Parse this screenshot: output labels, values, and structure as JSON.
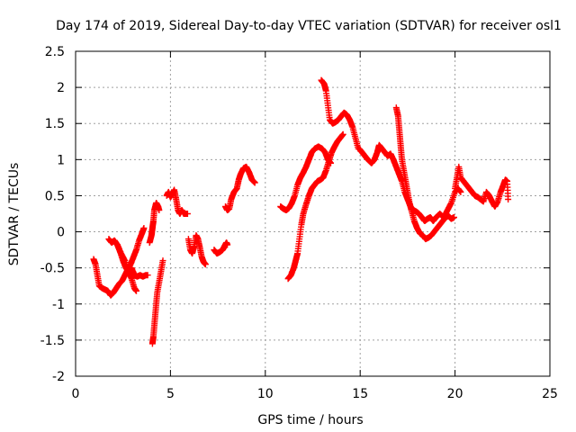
{
  "chart_data": {
    "type": "scatter",
    "title": "Day 174 of 2019, Sidereal Day-to-day VTEC variation (SDTVAR) for receiver osl1",
    "xlabel": "GPS time / hours",
    "ylabel": "SDTVAR / TECUs",
    "xlim": [
      0,
      25
    ],
    "ylim": [
      -2,
      2.5
    ],
    "xticks": [
      0,
      5,
      10,
      15,
      20,
      25
    ],
    "xtick_labels": [
      "0",
      "5",
      "10",
      "15",
      "20",
      "25"
    ],
    "yticks": [
      -2,
      -1.5,
      -1,
      -0.5,
      0,
      0.5,
      1,
      1.5,
      2,
      2.5
    ],
    "ytick_labels": [
      "-2",
      "-1.5",
      "-1",
      "-0.5",
      "0",
      "0.5",
      "1",
      "1.5",
      "2",
      "2.5"
    ],
    "grid": true,
    "marker": "+",
    "marker_color": "#ff0000",
    "tracks": [
      {
        "name": "track-1",
        "points": [
          [
            0.95,
            -0.38
          ],
          [
            1.05,
            -0.45
          ],
          [
            1.15,
            -0.6
          ],
          [
            1.25,
            -0.75
          ],
          [
            1.4,
            -0.78
          ],
          [
            1.55,
            -0.8
          ],
          [
            1.7,
            -0.82
          ],
          [
            1.85,
            -0.88
          ],
          [
            2.0,
            -0.84
          ],
          [
            2.15,
            -0.78
          ],
          [
            2.3,
            -0.72
          ],
          [
            2.45,
            -0.68
          ],
          [
            2.6,
            -0.6
          ],
          [
            2.75,
            -0.52
          ],
          [
            2.9,
            -0.45
          ],
          [
            3.05,
            -0.35
          ],
          [
            3.2,
            -0.25
          ],
          [
            3.35,
            -0.12
          ],
          [
            3.5,
            -0.02
          ],
          [
            3.6,
            0.05
          ]
        ]
      },
      {
        "name": "track-2",
        "points": [
          [
            1.75,
            -0.1
          ],
          [
            1.9,
            -0.15
          ],
          [
            2.05,
            -0.12
          ],
          [
            2.2,
            -0.18
          ],
          [
            2.35,
            -0.28
          ],
          [
            2.5,
            -0.4
          ],
          [
            2.65,
            -0.5
          ],
          [
            2.8,
            -0.55
          ],
          [
            2.95,
            -0.5
          ],
          [
            3.1,
            -0.6
          ],
          [
            3.25,
            -0.62
          ],
          [
            3.4,
            -0.6
          ],
          [
            3.55,
            -0.62
          ],
          [
            3.7,
            -0.6
          ],
          [
            3.8,
            -0.6
          ]
        ]
      },
      {
        "name": "track-3",
        "points": [
          [
            2.2,
            -0.18
          ],
          [
            2.4,
            -0.3
          ],
          [
            2.6,
            -0.4
          ],
          [
            2.8,
            -0.55
          ],
          [
            2.95,
            -0.65
          ],
          [
            3.1,
            -0.78
          ],
          [
            3.2,
            -0.82
          ]
        ]
      },
      {
        "name": "track-4",
        "points": [
          [
            3.9,
            -0.15
          ],
          [
            4.0,
            -0.05
          ],
          [
            4.05,
            0.05
          ],
          [
            4.1,
            0.15
          ],
          [
            4.15,
            0.3
          ],
          [
            4.25,
            0.4
          ],
          [
            4.35,
            0.35
          ],
          [
            4.4,
            0.3
          ]
        ]
      },
      {
        "name": "track-5",
        "points": [
          [
            4.05,
            -1.55
          ],
          [
            4.1,
            -1.45
          ],
          [
            4.15,
            -1.3
          ],
          [
            4.2,
            -1.15
          ],
          [
            4.25,
            -1.0
          ],
          [
            4.3,
            -0.85
          ],
          [
            4.4,
            -0.7
          ],
          [
            4.5,
            -0.55
          ],
          [
            4.6,
            -0.4
          ]
        ]
      },
      {
        "name": "track-6",
        "points": [
          [
            4.8,
            0.5
          ],
          [
            4.9,
            0.55
          ],
          [
            5.0,
            0.48
          ],
          [
            5.1,
            0.52
          ],
          [
            5.2,
            0.58
          ],
          [
            5.3,
            0.45
          ],
          [
            5.4,
            0.3
          ],
          [
            5.5,
            0.25
          ],
          [
            5.6,
            0.3
          ],
          [
            5.7,
            0.25
          ],
          [
            5.8,
            0.25
          ],
          [
            5.9,
            0.25
          ]
        ]
      },
      {
        "name": "track-7",
        "points": [
          [
            5.95,
            -0.1
          ],
          [
            6.05,
            -0.25
          ],
          [
            6.15,
            -0.3
          ],
          [
            6.25,
            -0.2
          ],
          [
            6.35,
            -0.05
          ],
          [
            6.45,
            -0.1
          ],
          [
            6.55,
            -0.22
          ],
          [
            6.65,
            -0.35
          ],
          [
            6.75,
            -0.42
          ],
          [
            6.85,
            -0.45
          ]
        ]
      },
      {
        "name": "track-8",
        "points": [
          [
            7.3,
            -0.25
          ],
          [
            7.45,
            -0.3
          ],
          [
            7.6,
            -0.28
          ],
          [
            7.75,
            -0.25
          ],
          [
            7.85,
            -0.2
          ],
          [
            7.95,
            -0.15
          ],
          [
            8.0,
            -0.18
          ]
        ]
      },
      {
        "name": "track-9",
        "points": [
          [
            7.9,
            0.35
          ],
          [
            8.0,
            0.3
          ],
          [
            8.1,
            0.32
          ],
          [
            8.2,
            0.45
          ],
          [
            8.35,
            0.55
          ],
          [
            8.5,
            0.6
          ],
          [
            8.6,
            0.72
          ],
          [
            8.7,
            0.8
          ],
          [
            8.85,
            0.88
          ],
          [
            9.0,
            0.9
          ],
          [
            9.15,
            0.82
          ],
          [
            9.3,
            0.72
          ],
          [
            9.45,
            0.68
          ]
        ]
      },
      {
        "name": "track-10",
        "points": [
          [
            10.8,
            0.35
          ],
          [
            10.95,
            0.32
          ],
          [
            11.1,
            0.3
          ],
          [
            11.25,
            0.33
          ],
          [
            11.4,
            0.4
          ],
          [
            11.55,
            0.5
          ],
          [
            11.7,
            0.65
          ],
          [
            11.85,
            0.75
          ],
          [
            12.0,
            0.82
          ],
          [
            12.15,
            0.9
          ],
          [
            12.3,
            1.0
          ],
          [
            12.45,
            1.1
          ],
          [
            12.6,
            1.15
          ],
          [
            12.8,
            1.18
          ],
          [
            13.0,
            1.15
          ],
          [
            13.15,
            1.1
          ],
          [
            13.3,
            1.0
          ],
          [
            13.45,
            0.95
          ]
        ]
      },
      {
        "name": "track-11",
        "points": [
          [
            11.2,
            -0.65
          ],
          [
            11.35,
            -0.6
          ],
          [
            11.5,
            -0.5
          ],
          [
            11.6,
            -0.4
          ],
          [
            11.7,
            -0.3
          ],
          [
            11.8,
            -0.1
          ],
          [
            11.9,
            0.1
          ],
          [
            12.0,
            0.25
          ],
          [
            12.15,
            0.38
          ],
          [
            12.3,
            0.5
          ],
          [
            12.45,
            0.6
          ],
          [
            12.6,
            0.65
          ],
          [
            12.75,
            0.7
          ],
          [
            12.9,
            0.72
          ],
          [
            13.05,
            0.75
          ],
          [
            13.2,
            0.85
          ],
          [
            13.35,
            0.98
          ],
          [
            13.5,
            1.1
          ],
          [
            13.65,
            1.18
          ],
          [
            13.8,
            1.25
          ],
          [
            13.95,
            1.3
          ],
          [
            14.1,
            1.35
          ]
        ]
      },
      {
        "name": "track-12",
        "points": [
          [
            12.95,
            2.1
          ],
          [
            13.1,
            2.05
          ],
          [
            13.2,
            1.95
          ],
          [
            13.3,
            1.75
          ],
          [
            13.4,
            1.55
          ],
          [
            13.55,
            1.5
          ],
          [
            13.7,
            1.52
          ],
          [
            13.85,
            1.55
          ],
          [
            14.0,
            1.6
          ],
          [
            14.15,
            1.65
          ],
          [
            14.3,
            1.62
          ],
          [
            14.45,
            1.55
          ],
          [
            14.6,
            1.45
          ],
          [
            14.75,
            1.3
          ],
          [
            14.9,
            1.15
          ]
        ]
      },
      {
        "name": "track-13",
        "points": [
          [
            14.95,
            1.15
          ],
          [
            15.1,
            1.1
          ],
          [
            15.25,
            1.05
          ],
          [
            15.4,
            1.0
          ],
          [
            15.6,
            0.95
          ],
          [
            15.75,
            1.0
          ],
          [
            15.9,
            1.1
          ],
          [
            16.0,
            1.2
          ],
          [
            16.15,
            1.15
          ],
          [
            16.3,
            1.1
          ],
          [
            16.45,
            1.05
          ],
          [
            16.6,
            1.08
          ],
          [
            16.75,
            1.0
          ],
          [
            16.9,
            0.9
          ],
          [
            17.05,
            0.8
          ],
          [
            17.2,
            0.7
          ],
          [
            17.35,
            0.55
          ],
          [
            17.5,
            0.45
          ],
          [
            17.65,
            0.35
          ],
          [
            17.8,
            0.3
          ],
          [
            17.95,
            0.28
          ],
          [
            18.1,
            0.25
          ],
          [
            18.25,
            0.2
          ],
          [
            18.4,
            0.15
          ],
          [
            18.55,
            0.18
          ],
          [
            18.7,
            0.2
          ],
          [
            18.85,
            0.15
          ],
          [
            19.0,
            0.2
          ],
          [
            19.2,
            0.25
          ],
          [
            19.4,
            0.2
          ],
          [
            19.6,
            0.3
          ],
          [
            19.8,
            0.4
          ],
          [
            20.0,
            0.55
          ],
          [
            20.15,
            0.6
          ],
          [
            20.3,
            0.55
          ]
        ]
      },
      {
        "name": "track-14",
        "points": [
          [
            16.9,
            1.72
          ],
          [
            17.0,
            1.6
          ],
          [
            17.05,
            1.45
          ],
          [
            17.1,
            1.3
          ],
          [
            17.15,
            1.15
          ],
          [
            17.2,
            1.0
          ],
          [
            17.3,
            0.85
          ],
          [
            17.4,
            0.7
          ],
          [
            17.5,
            0.55
          ],
          [
            17.6,
            0.4
          ],
          [
            17.7,
            0.3
          ],
          [
            17.85,
            0.15
          ],
          [
            18.0,
            0.05
          ],
          [
            18.15,
            -0.02
          ],
          [
            18.3,
            -0.05
          ],
          [
            18.45,
            -0.1
          ],
          [
            18.6,
            -0.08
          ],
          [
            18.75,
            -0.05
          ],
          [
            18.9,
            0.0
          ],
          [
            19.05,
            0.05
          ],
          [
            19.2,
            0.1
          ],
          [
            19.35,
            0.15
          ],
          [
            19.5,
            0.2
          ],
          [
            19.65,
            0.22
          ],
          [
            19.8,
            0.18
          ],
          [
            19.95,
            0.2
          ]
        ]
      },
      {
        "name": "track-15",
        "points": [
          [
            20.0,
            0.6
          ],
          [
            20.1,
            0.75
          ],
          [
            20.2,
            0.9
          ],
          [
            20.3,
            0.75
          ],
          [
            20.45,
            0.7
          ],
          [
            20.6,
            0.65
          ],
          [
            20.75,
            0.6
          ],
          [
            20.9,
            0.55
          ],
          [
            21.05,
            0.5
          ],
          [
            21.2,
            0.48
          ],
          [
            21.35,
            0.45
          ],
          [
            21.5,
            0.42
          ],
          [
            21.65,
            0.55
          ],
          [
            21.8,
            0.5
          ],
          [
            21.95,
            0.42
          ],
          [
            22.1,
            0.35
          ],
          [
            22.25,
            0.42
          ],
          [
            22.4,
            0.55
          ],
          [
            22.55,
            0.65
          ],
          [
            22.65,
            0.72
          ],
          [
            22.75,
            0.7
          ],
          [
            22.8,
            0.45
          ]
        ]
      }
    ]
  }
}
